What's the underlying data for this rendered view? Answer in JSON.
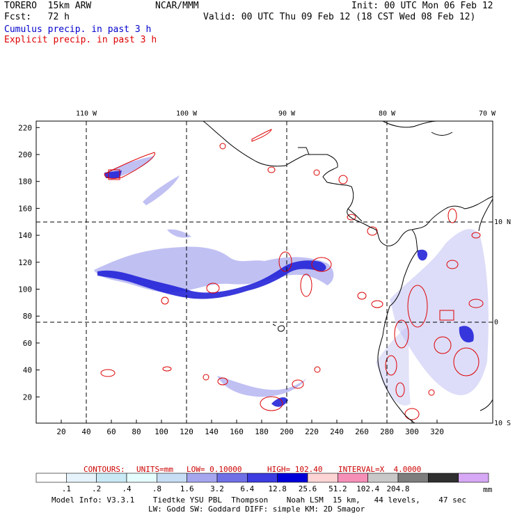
{
  "header": {
    "model": "TORERO  15km ARW",
    "center": "NCAR/MMM",
    "init": "Init: 00 UTC Mon 06 Feb 12",
    "fcst": "Fcst:   72 h",
    "valid": "Valid: 00 UTC Thu 09 Feb 12 (18 CST Wed 08 Feb 12)",
    "legend_cumulus": "Cumulus precip. in past 3 h",
    "legend_explicit": "Explicit precip. in past 3 h",
    "legend_cumulus_color": "#0000cc",
    "legend_explicit_color": "#dd0000"
  },
  "map": {
    "x_ticks": [
      "20",
      "40",
      "60",
      "80",
      "100",
      "120",
      "140",
      "160",
      "180",
      "200",
      "220",
      "240",
      "260",
      "280",
      "300",
      "320"
    ],
    "y_ticks": [
      "20",
      "40",
      "60",
      "80",
      "100",
      "120",
      "140",
      "160",
      "180",
      "200",
      "220"
    ],
    "lon_labels": [
      "110 W",
      "100 W",
      "90 W",
      "80 W",
      "70 W"
    ],
    "lat_labels": [
      "10 N",
      "0",
      "10 S"
    ]
  },
  "contour_info": {
    "contours": "CONTOURS:",
    "units": "UNITS=mm",
    "low": "LOW= 0.10000",
    "high": "HIGH= 102.40",
    "interval": "INTERVAL=X  4.0000",
    "color": "#cc0000"
  },
  "colorbar": {
    "labels": [
      ".1",
      ".2",
      ".4",
      ".8",
      "1.6",
      "3.2",
      "6.4",
      "12.8",
      "25.6",
      "51.2",
      "102.4",
      "204.8"
    ],
    "unit": "mm",
    "colors": [
      "#ffffff",
      "#e6f3fb",
      "#c9e9f5",
      "#e6fdfd",
      "#c6ddf3",
      "#a6a6ee",
      "#7070e6",
      "#3c3ce0",
      "#0000d8",
      "#fdd4d4",
      "#f58fb8",
      "#c8c8c8",
      "#7d7d7d",
      "#2f2f2f",
      "#d6a8f5"
    ]
  },
  "footer": {
    "line1": "Model Info: V3.3.1    Tiedtke YSU PBL  Thompson    Noah LSM  15 km,   44 levels,    47 sec",
    "line2": "LW: Godd SW: Goddard DIFF: simple KM: 2D Smagor"
  }
}
